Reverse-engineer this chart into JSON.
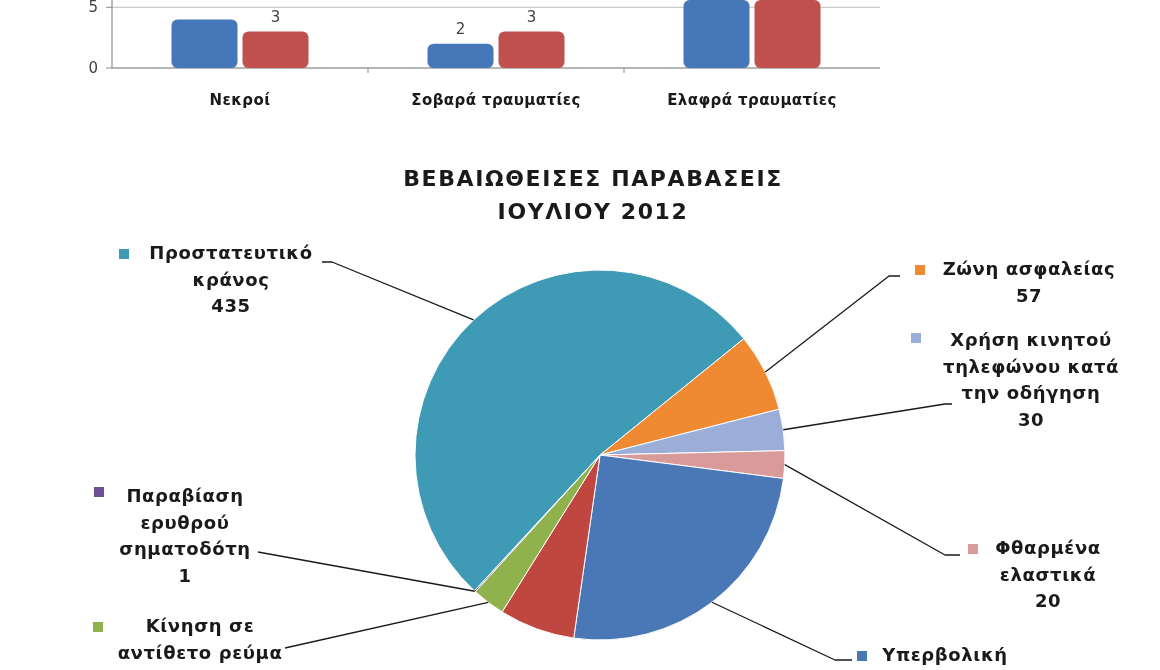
{
  "chart_data": [
    {
      "type": "bar",
      "categories": [
        "Νεκροί",
        "Σοβαρά τραυματίες",
        "Ελαφρά τραυματίες"
      ],
      "series": [
        {
          "color": "#4677b8",
          "values": [
            4,
            2,
            5.6
          ],
          "value_labels": [
            null,
            "2",
            null
          ]
        },
        {
          "color": "#c0504d",
          "values": [
            3,
            3,
            5.6
          ],
          "value_labels": [
            "3",
            "3",
            null
          ]
        }
      ],
      "ylim": [
        0,
        5.6
      ],
      "yticks": [
        0,
        5
      ],
      "grid": "y"
    },
    {
      "type": "pie",
      "title": "ΒΕΒΑΙΩΘΕΙΣΕΣ ΠΑΡΑΒΑΣΕΙΣ\nΙΟΥΛΙΟΥ 2012",
      "categories": [
        "Ζώνη ασφαλείας",
        "Χρήση κινητού τηλεφώνου κατά την οδήγηση",
        "Φθαρμένα ελαστικά",
        "Υπερβολική",
        null,
        "Κίνηση σε αντίθετο ρεύμα",
        "Παραβίαση ερυθρού σηματοδότη",
        "Προστατευτικό κράνος"
      ],
      "values": [
        57,
        30,
        20,
        210,
        55,
        24,
        1,
        435
      ],
      "colors": [
        "#ef8a32",
        "#9aaed8",
        "#d99a9a",
        "#4a78b6",
        "#c0473f",
        "#8fb24c",
        "#6d5096",
        "#3f9ab5"
      ],
      "value_labels": [
        "57",
        "30",
        "20",
        null,
        null,
        null,
        "1",
        "435"
      ],
      "legend": "right"
    }
  ]
}
